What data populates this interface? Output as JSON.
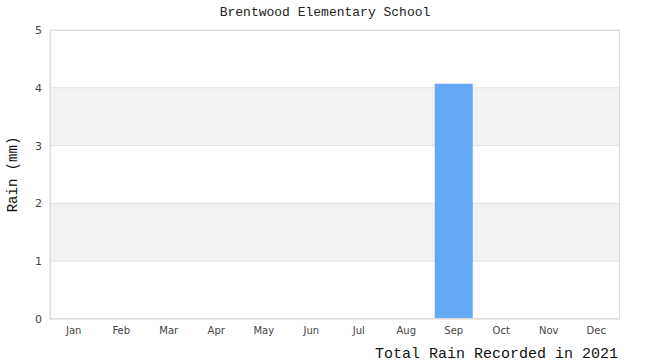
{
  "chart_data": {
    "type": "bar",
    "title": "Brentwood Elementary School",
    "x_label": "Total Rain Recorded in 2021",
    "y_label": "Rain (mm)",
    "categories": [
      "Jan",
      "Feb",
      "Mar",
      "Apr",
      "May",
      "Jun",
      "Jul",
      "Aug",
      "Sep",
      "Oct",
      "Nov",
      "Dec"
    ],
    "values": [
      0,
      0,
      0,
      0,
      0,
      0,
      0,
      0,
      4.07,
      0,
      0,
      0
    ],
    "color": "#63a9f4",
    "ylim": [
      0,
      5
    ],
    "yticks": [
      0,
      1,
      2,
      3,
      4,
      5
    ],
    "grid": true
  }
}
